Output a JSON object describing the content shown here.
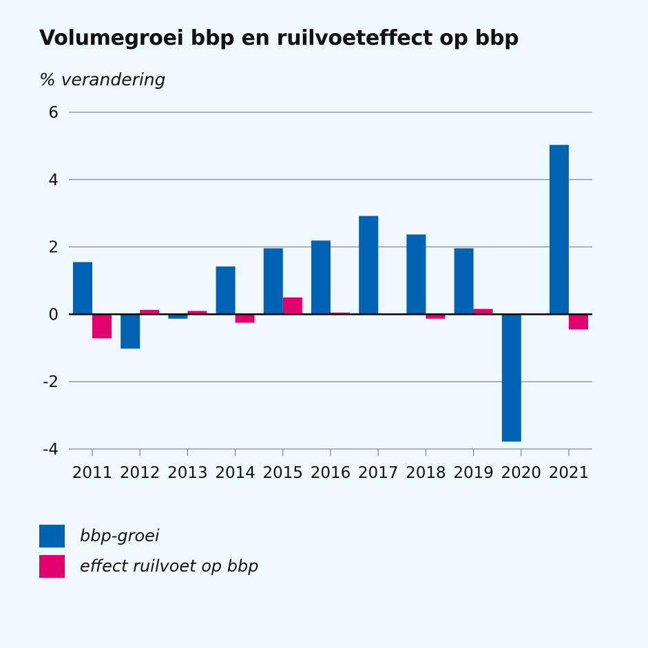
{
  "chart_data": {
    "type": "bar",
    "title": "Volumegroei bbp en ruilvoeteffect op bbp",
    "ylabel": "% verandering",
    "categories": [
      "2011",
      "2012",
      "2013",
      "2014",
      "2015",
      "2016",
      "2017",
      "2018",
      "2019",
      "2020",
      "2021"
    ],
    "series": [
      {
        "name": "bbp-groei",
        "color": "#0062b3",
        "values": [
          1.55,
          -1.02,
          -0.13,
          1.42,
          1.96,
          2.19,
          2.92,
          2.37,
          1.96,
          -3.78,
          5.03
        ]
      },
      {
        "name": "effect ruilvoet op bbp",
        "color": "#e2006f",
        "values": [
          -0.71,
          0.13,
          0.1,
          -0.25,
          0.5,
          0.05,
          0.0,
          -0.13,
          0.16,
          0.0,
          -0.45
        ]
      }
    ],
    "ylim": [
      -4,
      6
    ],
    "yticks": [
      6,
      4,
      2,
      0,
      -2,
      -4
    ],
    "grid": true,
    "legend_position": "bottom-left"
  }
}
